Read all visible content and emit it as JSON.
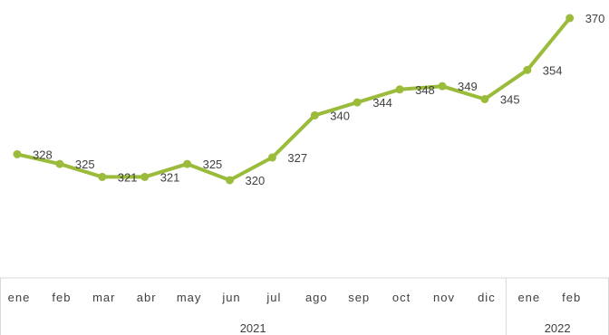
{
  "chart_data": {
    "type": "line",
    "categories": [
      "ene",
      "feb",
      "mar",
      "abr",
      "may",
      "jun",
      "jul",
      "ago",
      "sep",
      "oct",
      "nov",
      "dic",
      "ene",
      "feb"
    ],
    "values": [
      328,
      325,
      321,
      321,
      325,
      320,
      327,
      340,
      344,
      348,
      349,
      345,
      354,
      370
    ],
    "groups": [
      {
        "label": "2021",
        "count": 12
      },
      {
        "label": "2022",
        "count": 2
      }
    ],
    "title": "",
    "xlabel": "",
    "ylabel": "",
    "ylim": [
      290,
      375
    ],
    "grid": false,
    "legend": "none",
    "line_color": "#9bbb3b",
    "axis_color": "#d9d9d9",
    "text_color": "#404040"
  }
}
